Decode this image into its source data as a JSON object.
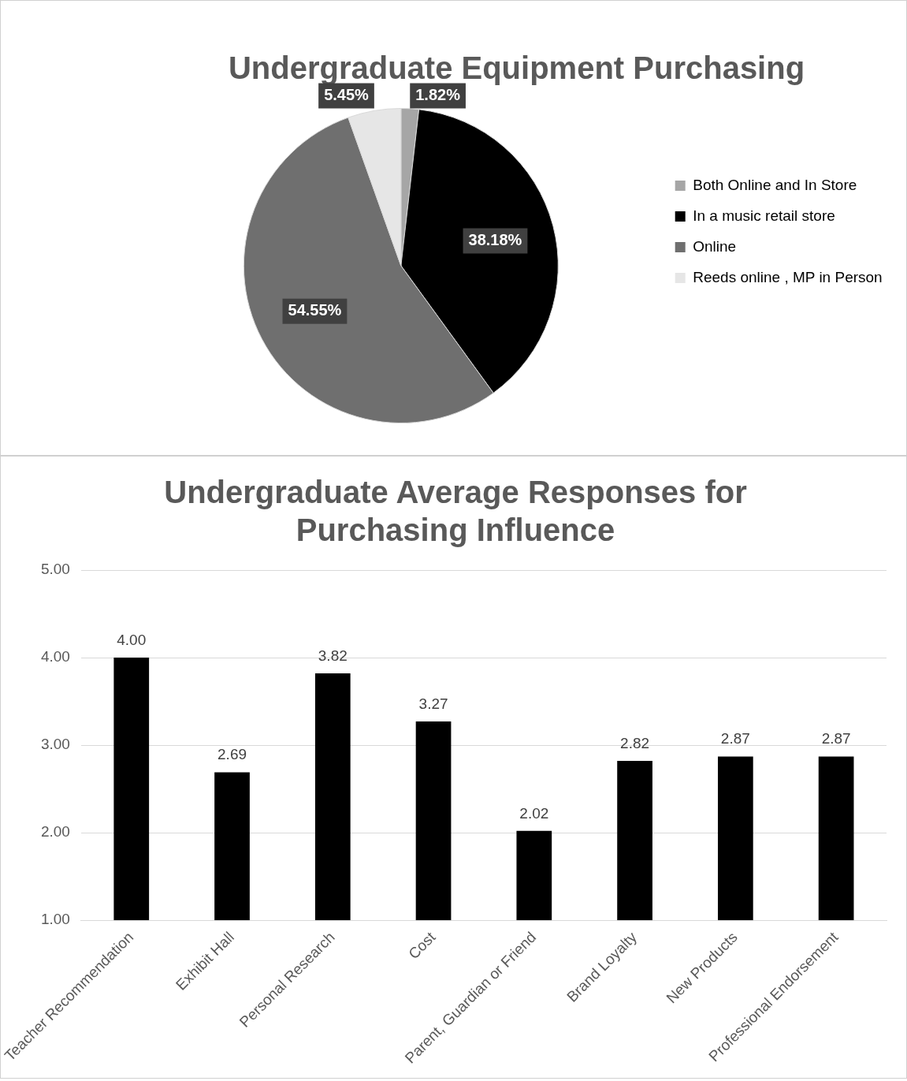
{
  "chart_data": [
    {
      "type": "pie",
      "title": "Undergraduate Equipment Purchasing",
      "categories": [
        "Both Online and In Store",
        "In a music retail store",
        "Online",
        "Reeds online , MP in Person"
      ],
      "values": [
        1.82,
        38.18,
        54.55,
        5.45
      ],
      "colors": [
        "#a6a6a6",
        "#000000",
        "#6f6f6f",
        "#e6e6e6"
      ],
      "value_labels": [
        "1.82%",
        "38.18%",
        "54.55%",
        "5.45%"
      ],
      "legend": "right"
    },
    {
      "type": "bar",
      "title": "Undergraduate Average Responses for Purchasing Influence",
      "categories": [
        "Teacher Recommendation",
        "Exhibit Hall",
        "Personal Research",
        "Cost",
        "Parent, Guardian or Friend",
        "Brand Loyalty",
        "New Products",
        "Professional Endorsement"
      ],
      "values": [
        4.0,
        2.69,
        3.82,
        3.27,
        2.02,
        2.82,
        2.87,
        2.87
      ],
      "color": "#000000",
      "value_labels": [
        "4.00",
        "2.69",
        "3.82",
        "3.27",
        "2.02",
        "2.82",
        "2.87",
        "2.87"
      ],
      "ylim": [
        1,
        5
      ],
      "yticks": [
        {
          "value": 1,
          "label": "1.00"
        },
        {
          "value": 2,
          "label": "2.00"
        },
        {
          "value": 3,
          "label": "3.00"
        },
        {
          "value": 4,
          "label": "4.00"
        },
        {
          "value": 5,
          "label": "5.00"
        }
      ],
      "grid": "y",
      "legend": false
    }
  ]
}
